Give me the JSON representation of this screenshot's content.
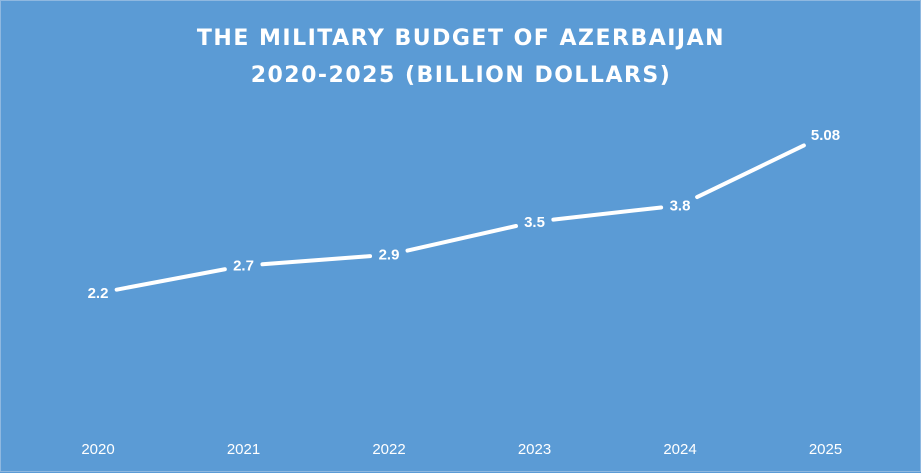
{
  "chart_data": {
    "type": "line",
    "title": "THE MILITARY BUDGET OF AZERBAIJAN",
    "subtitle": "2020-2025 (BILLION DOLLARS)",
    "categories": [
      "2020",
      "2021",
      "2022",
      "2023",
      "2024",
      "2025"
    ],
    "series": [
      {
        "values": [
          2.2,
          2.7,
          2.9,
          3.5,
          3.8,
          5.08
        ]
      }
    ],
    "data_labels": [
      "2.2",
      "2.7",
      "2.9",
      "3.5",
      "3.8",
      "5.08"
    ],
    "xlabel": "",
    "ylabel": "",
    "ylim": [
      0,
      6
    ],
    "grid": false,
    "legend": "none",
    "drop_lines": true,
    "colors": {
      "background": "#5b9bd5",
      "line": "#ffffff",
      "text": "#ffffff"
    }
  }
}
